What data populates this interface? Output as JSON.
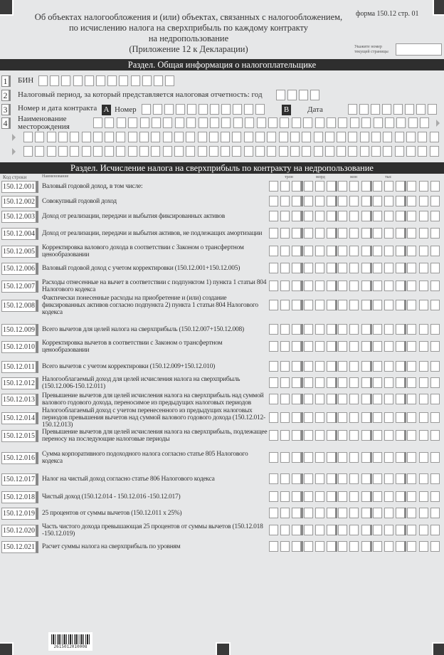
{
  "header": {
    "title_lines": [
      "Об объектах налогообложения и (или) объектах, связанных с налогообложением,",
      "по исчислению налога на сверхприбыль по каждому контракту",
      "на недропользование",
      "(Приложение 12 к Декларации)"
    ],
    "form_label": "форма 150.12 стр. 01",
    "page_number_label": "Укажите номер текущей страницы",
    "page_number_value": ""
  },
  "section1": {
    "title": "Раздел. Общая информация о налогоплательщике",
    "fields": [
      {
        "num": "1",
        "label": "БИН"
      },
      {
        "num": "2",
        "label": "Налоговый период, за который представляется налоговая отчетность: год"
      },
      {
        "num": "3",
        "label": "Номер и дата контракта",
        "a_tag": "A",
        "a_label": "Номер",
        "b_tag": "B",
        "b_label": "Дата"
      },
      {
        "num": "4",
        "label": "Наименование месторождения"
      }
    ]
  },
  "section2": {
    "title": "Раздел. Исчисление  налога на сверхприбыль по контракту на недропользование",
    "col_code": "Код строки",
    "col_name": "Наименование",
    "units": [
      "трлн",
      "млрд",
      "млн",
      "тыс"
    ],
    "rows": [
      {
        "code": "150.12.001",
        "name": "Валовый годовой доход, в том числе:"
      },
      {
        "code": "150.12.002",
        "name": "Совокупный годовой доход"
      },
      {
        "code": "150.12.003",
        "name": "Доход от реализации, передачи и выбытия фиксированных активов"
      },
      {
        "code": "150.12.004",
        "name": "Доход от реализации, передачи и выбытия активов, не подлежащих амортизации"
      },
      {
        "code": "150.12.005",
        "name": "Корректировка валового дохода в соответствии с Законом о трансфертном ценообразовании"
      },
      {
        "code": "150.12.006",
        "name": "Валовый годовой доход с учетом корректировки (150.12.001+150.12.005)"
      },
      {
        "code": "150.12.007",
        "name": "Расходы отнесенные на вычет в соответствии с подпунктом 1) пункта 1 статьи 804 Налогового кодекса"
      },
      {
        "code": "150.12.008",
        "name": "Фактически понесенные расходы на приобретение и (или) создание фиксированных активов согласно подпункта 2) пункта 1 статьи 804 Налогового кодекса"
      },
      {
        "code": "150.12.009",
        "name": "Всего вычетов для целей налога на сверхприбыль (150.12.007+150.12.008)"
      },
      {
        "code": "150.12.010",
        "name": "Корректировка вычетов в соответствии с Законом о трансфертном ценообразовании"
      },
      {
        "code": "150.12.011",
        "name": "Всего вычетов с учетом корректировки (150.12.009+150.12.010)"
      },
      {
        "code": "150.12.012",
        "name": "Налогооблагаемый доход для целей исчисления налога на сверхприбыль (150.12.006-150.12.011)"
      },
      {
        "code": "150.12.013",
        "name": "Превышение вычетов для целей исчисления налога на сверхприбыль над суммой валового годового дохода, переносимое из предыдущих налоговых периодов"
      },
      {
        "code": "150.12.014",
        "name": "Налогооблагаемый доход с учетом перенесенного из предыдущих налоговых периодов превышения вычетов над суммой валового годового дохода (150.12.012-150.12.013)"
      },
      {
        "code": "150.12.015",
        "name": "Превышение вычетов для целей исчисления налога на сверхприбыль, подлежащее переносу на последующие налоговые периоды"
      },
      {
        "code": "150.12.016",
        "name": "Сумма корпоративного подоходного налога согласно статье 805 Налогового кодекса"
      },
      {
        "code": "150.12.017",
        "name": "Налог на чистый доход согласно статье 806 Налогового кодекса"
      },
      {
        "code": "150.12.018",
        "name": "Чистый доход (150.12.014 - 150.12.016 -150.12.017)"
      },
      {
        "code": "150.12.019",
        "name": "25 процентов от суммы вычетов (150.12.011 x 25%)"
      },
      {
        "code": "150.12.020",
        "name": "Часть чистого дохода превышающая 25 процентов от суммы вычетов (150.12.018 -150.12.019)"
      },
      {
        "code": "150.12.021",
        "name": "Расчет суммы налога на сверхприбыль  по уровням"
      }
    ]
  },
  "footer": {
    "barcode_number": "2615012010008"
  }
}
